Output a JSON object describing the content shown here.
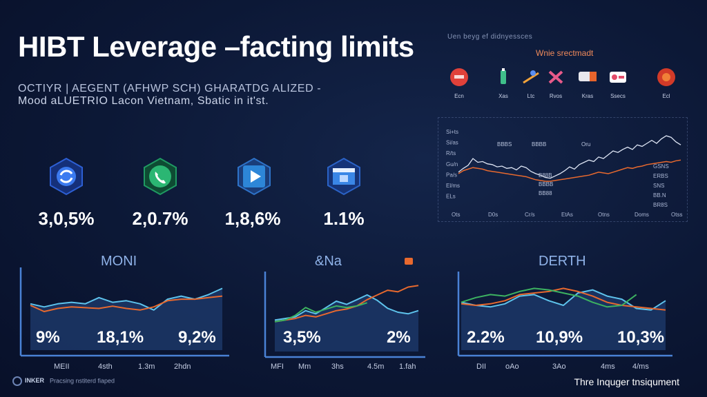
{
  "header": {
    "title": "HIBT Leverage –facting limits",
    "subtitle_line1": "OCTIYR | AEGENT (AFHWP SCH) GHARATDG ALIZED -",
    "subtitle_line2": "Mood aLUETRIO Lacon Vietnam, Sbatic in it'st."
  },
  "kpis": [
    {
      "icon": "refresh-circle-icon",
      "value": "3,0,5%",
      "color": "#2d5fd4"
    },
    {
      "icon": "phone-icon",
      "value": "2,0.7%",
      "color": "#1f9a62"
    },
    {
      "icon": "play-icon",
      "value": "1,8,6%",
      "color": "#2e73c9"
    },
    {
      "icon": "display-icon",
      "value": "1.1%",
      "color": "#2b63c7"
    }
  ],
  "top_right": {
    "title": "Uen beyg ef didnyessces",
    "subtitle": "Wnie srectmadt",
    "icons": [
      {
        "icon": "red-circle-icon",
        "label": "Ecn"
      },
      {
        "icon": "bottle-icon",
        "label": "Xas"
      },
      {
        "icon": "ski-icon",
        "label": "Ltc"
      },
      {
        "icon": "cross-icon",
        "label": "Rvos"
      },
      {
        "icon": "tag-icon",
        "label": "Kras"
      },
      {
        "icon": "chart-icon",
        "label": "Ssecs"
      },
      {
        "icon": "crab-icon",
        "label": "Ecl"
      }
    ]
  },
  "chart_data": [
    {
      "type": "line",
      "y_ticks": [
        "Si+ts",
        "Si/as",
        "R/ts",
        "Gu/n",
        "Pa/s",
        "El/ms",
        "ELs"
      ],
      "inline_labels": [
        "BBBS",
        "BBBB",
        "Oru",
        "B88B",
        "BBBB",
        "BB88"
      ],
      "right_ticks": [
        "GSNS",
        "ERBS",
        "SNS",
        "BB.N",
        "BR8S"
      ],
      "x_ticks": [
        "Ots",
        "D0s",
        "Cr/s",
        "EtAs",
        "Otns",
        "Doms",
        "Otss"
      ],
      "series": [
        {
          "values": [
            42,
            47,
            51,
            60,
            55,
            56,
            53,
            52,
            49,
            50,
            47,
            48,
            45,
            50,
            48,
            43,
            40,
            38,
            35,
            34,
            37,
            40,
            44,
            49,
            46,
            52,
            55,
            58,
            56,
            62,
            60,
            65,
            70,
            68,
            72,
            75,
            72,
            78,
            76,
            80,
            84,
            80,
            86,
            90,
            88,
            82,
            78
          ]
        },
        {
          "values": [
            40,
            44,
            46,
            48,
            47,
            46,
            44,
            43,
            42,
            41,
            40,
            39,
            38,
            37,
            36,
            34,
            32,
            31,
            30,
            30,
            31,
            32,
            33,
            34,
            35,
            36,
            37,
            38,
            40,
            42,
            41,
            40,
            42,
            44,
            46,
            48,
            47,
            49,
            50,
            52,
            53,
            54,
            55,
            56,
            55,
            57,
            58
          ]
        }
      ]
    },
    {
      "type": "area",
      "title": "MONI",
      "values_display": [
        "9%",
        "18,1%",
        "9,2%"
      ],
      "x_ticks": [
        "MEII",
        "4sth",
        "1.3m",
        "2hdn"
      ],
      "ylim": [
        0,
        100
      ],
      "series": [
        {
          "values": [
            60,
            56,
            60,
            62,
            60,
            68,
            62,
            64,
            60,
            52,
            66,
            70,
            66,
            72,
            80
          ]
        },
        {
          "values": [
            58,
            50,
            54,
            56,
            55,
            54,
            57,
            54,
            52,
            56,
            64,
            66,
            66,
            68,
            70
          ]
        }
      ]
    },
    {
      "type": "area",
      "title": "&Na",
      "values_display": [
        "3,5%",
        "2%"
      ],
      "x_ticks": [
        "MFI",
        "Mm",
        "3hs",
        "4.5m",
        "1.fah"
      ],
      "ylim": [
        0,
        100
      ],
      "series": [
        {
          "values": [
            40,
            42,
            44,
            52,
            48,
            56,
            64,
            60,
            66,
            72,
            65,
            55,
            50,
            48,
            52
          ]
        },
        {
          "values": [
            38,
            40,
            42,
            46,
            44,
            48,
            52,
            54,
            58,
            66,
            72,
            78,
            76,
            82,
            84
          ]
        },
        {
          "values": [
            38,
            40,
            46,
            56,
            50,
            54,
            58,
            56,
            58,
            62
          ]
        }
      ]
    },
    {
      "type": "area",
      "title": "DERTH",
      "values_display": [
        "2.2%",
        "10,9%",
        "10,3%"
      ],
      "x_ticks": [
        "DII",
        "oAo",
        "3Ao",
        "4ms",
        "4/ms"
      ],
      "ylim": [
        0,
        100
      ],
      "series": [
        {
          "values": [
            62,
            58,
            56,
            60,
            70,
            72,
            64,
            58,
            74,
            78,
            70,
            66,
            54,
            52,
            64
          ]
        },
        {
          "values": [
            60,
            58,
            60,
            64,
            72,
            74,
            76,
            80,
            76,
            70,
            62,
            58,
            56,
            54,
            52
          ]
        },
        {
          "values": [
            62,
            68,
            72,
            70,
            76,
            80,
            78,
            74,
            70,
            62,
            56,
            58,
            72
          ]
        }
      ]
    }
  ],
  "footer": {
    "brand": "INKER",
    "left_text": "Pracsing nstiterd fiaped",
    "right_text": "Thre Inquger tnsiqument"
  },
  "colors": {
    "blue_line": "#5ec3ec",
    "orange_line": "#e8692e",
    "green_line": "#3db361",
    "axis": "#4a82d6"
  }
}
